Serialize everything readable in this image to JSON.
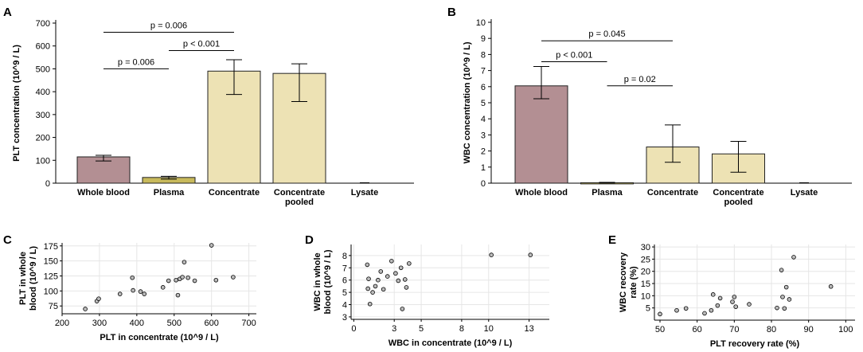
{
  "colors": {
    "whole_blood": "#b38f93",
    "plasma": "#c8ba5c",
    "concentrate": "#ede2b4",
    "scatter_point": "#bbbbbb",
    "gridline": "#e6e6e6"
  },
  "chart_data": [
    {
      "panel": "A",
      "type": "bar",
      "ylabel": "PLT concentration (10^9 / L)",
      "ylim": [
        0,
        700
      ],
      "yticks": [
        "0",
        "100",
        "200",
        "300",
        "400",
        "500",
        "600",
        "700"
      ],
      "categories": [
        "Whole blood",
        "Plasma",
        "Concentrate",
        "Concentrate pooled",
        "Lysate"
      ],
      "category_lines": [
        [
          "Whole blood"
        ],
        [
          "Plasma"
        ],
        [
          "Concentrate"
        ],
        [
          "Concentrate",
          "pooled"
        ],
        [
          "Lysate"
        ]
      ],
      "values": [
        115,
        25,
        490,
        480,
        0
      ],
      "error_low": [
        97,
        18,
        388,
        357,
        0
      ],
      "error_high": [
        122,
        30,
        540,
        522,
        0
      ],
      "colors": [
        "whole_blood",
        "plasma",
        "concentrate",
        "concentrate",
        "none"
      ],
      "annotations": [
        {
          "label": "p = 0.006",
          "from": 0,
          "to": 1,
          "y": 500
        },
        {
          "label": "p < 0.001",
          "from": 1,
          "to": 2,
          "y": 580
        },
        {
          "label": "p = 0.006",
          "from": 0,
          "to": 2,
          "y": 660
        }
      ]
    },
    {
      "panel": "B",
      "type": "bar",
      "ylabel": "WBC concentration (10^9 / L)",
      "ylim": [
        0,
        10
      ],
      "yticks": [
        "0",
        "1",
        "2",
        "3",
        "4",
        "5",
        "6",
        "7",
        "8",
        "9",
        "10"
      ],
      "categories": [
        "Whole blood",
        "Plasma",
        "Concentrate",
        "Concentrate pooled",
        "Lysate"
      ],
      "category_lines": [
        [
          "Whole blood"
        ],
        [
          "Plasma"
        ],
        [
          "Concentrate"
        ],
        [
          "Concentrate",
          "pooled"
        ],
        [
          "Lysate"
        ]
      ],
      "values": [
        6.05,
        0.03,
        2.25,
        1.82,
        0
      ],
      "error_low": [
        5.25,
        0.01,
        1.3,
        0.68,
        0
      ],
      "error_high": [
        7.25,
        0.05,
        3.62,
        2.6,
        0
      ],
      "colors": [
        "whole_blood",
        "plasma",
        "concentrate",
        "concentrate",
        "none"
      ],
      "annotations": [
        {
          "label": "p < 0.001",
          "from": 0,
          "to": 1,
          "y": 7.55
        },
        {
          "label": "p = 0.02",
          "from": 1,
          "to": 2,
          "y": 6.05
        },
        {
          "label": "p = 0.045",
          "from": 0,
          "to": 2,
          "y": 8.85
        }
      ]
    },
    {
      "panel": "C",
      "type": "scatter",
      "xlabel": "PLT in concentrate (10^9 / L)",
      "ylabel_lines": [
        "PLT in whole",
        "blood (10^9 / L)"
      ],
      "xlim": [
        200,
        720
      ],
      "ylim": [
        62,
        180
      ],
      "xticks": [
        200,
        300,
        400,
        500,
        600,
        700
      ],
      "yticks": [
        75,
        100,
        125,
        150,
        175
      ],
      "grid": true,
      "x": [
        262,
        293,
        298,
        355,
        388,
        390,
        410,
        420,
        470,
        485,
        505,
        510,
        515,
        522,
        527,
        537,
        555,
        600,
        612,
        658
      ],
      "y": [
        70,
        83,
        87,
        95,
        122,
        101,
        99,
        95,
        106,
        117,
        118,
        93,
        120,
        123,
        148,
        122,
        117,
        176,
        118,
        123
      ]
    },
    {
      "panel": "D",
      "type": "scatter",
      "xlabel": "WBC in concentrate (10^9 / L)",
      "ylabel_lines": [
        "WBC in whole",
        "blood (10^9 / L)"
      ],
      "xlim": [
        -0.2,
        14.5
      ],
      "ylim": [
        2.8,
        8.9
      ],
      "xticks": [
        0,
        3,
        5,
        8,
        10,
        13
      ],
      "yticks": [
        3,
        4,
        5,
        6,
        7,
        8
      ],
      "grid": true,
      "x": [
        1.0,
        1.05,
        1.1,
        1.2,
        1.4,
        1.6,
        1.8,
        2.0,
        2.2,
        2.5,
        2.8,
        3.1,
        3.3,
        3.5,
        3.6,
        3.8,
        3.9,
        4.1,
        10.2,
        13.1
      ],
      "y": [
        7.25,
        5.3,
        6.1,
        4.05,
        5.0,
        5.5,
        6.0,
        6.7,
        5.25,
        6.3,
        7.55,
        6.55,
        5.95,
        7.0,
        3.65,
        6.05,
        5.4,
        7.35,
        8.05,
        8.05
      ]
    },
    {
      "panel": "E",
      "type": "scatter",
      "xlabel": "PLT recovery rate (%)",
      "ylabel_lines": [
        "WBC recovery",
        "rate (%)"
      ],
      "xlim": [
        48.5,
        102.5
      ],
      "ylim": [
        0,
        31
      ],
      "xticks": [
        50,
        60,
        70,
        80,
        90,
        100
      ],
      "yticks": [
        5,
        10,
        15,
        20,
        25,
        30
      ],
      "grid": true,
      "x": [
        50,
        54.5,
        57,
        62,
        63.8,
        64.3,
        65.5,
        66.2,
        69.5,
        70,
        70.4,
        74,
        81.5,
        82.7,
        83,
        83.5,
        84,
        84.8,
        86,
        96
      ],
      "y": [
        2.5,
        4,
        4.8,
        2.8,
        4,
        10.5,
        6,
        9,
        7.5,
        9.5,
        5.5,
        6.5,
        5,
        20.5,
        9.5,
        4.8,
        13.5,
        8.5,
        25.8,
        13.8
      ]
    }
  ]
}
